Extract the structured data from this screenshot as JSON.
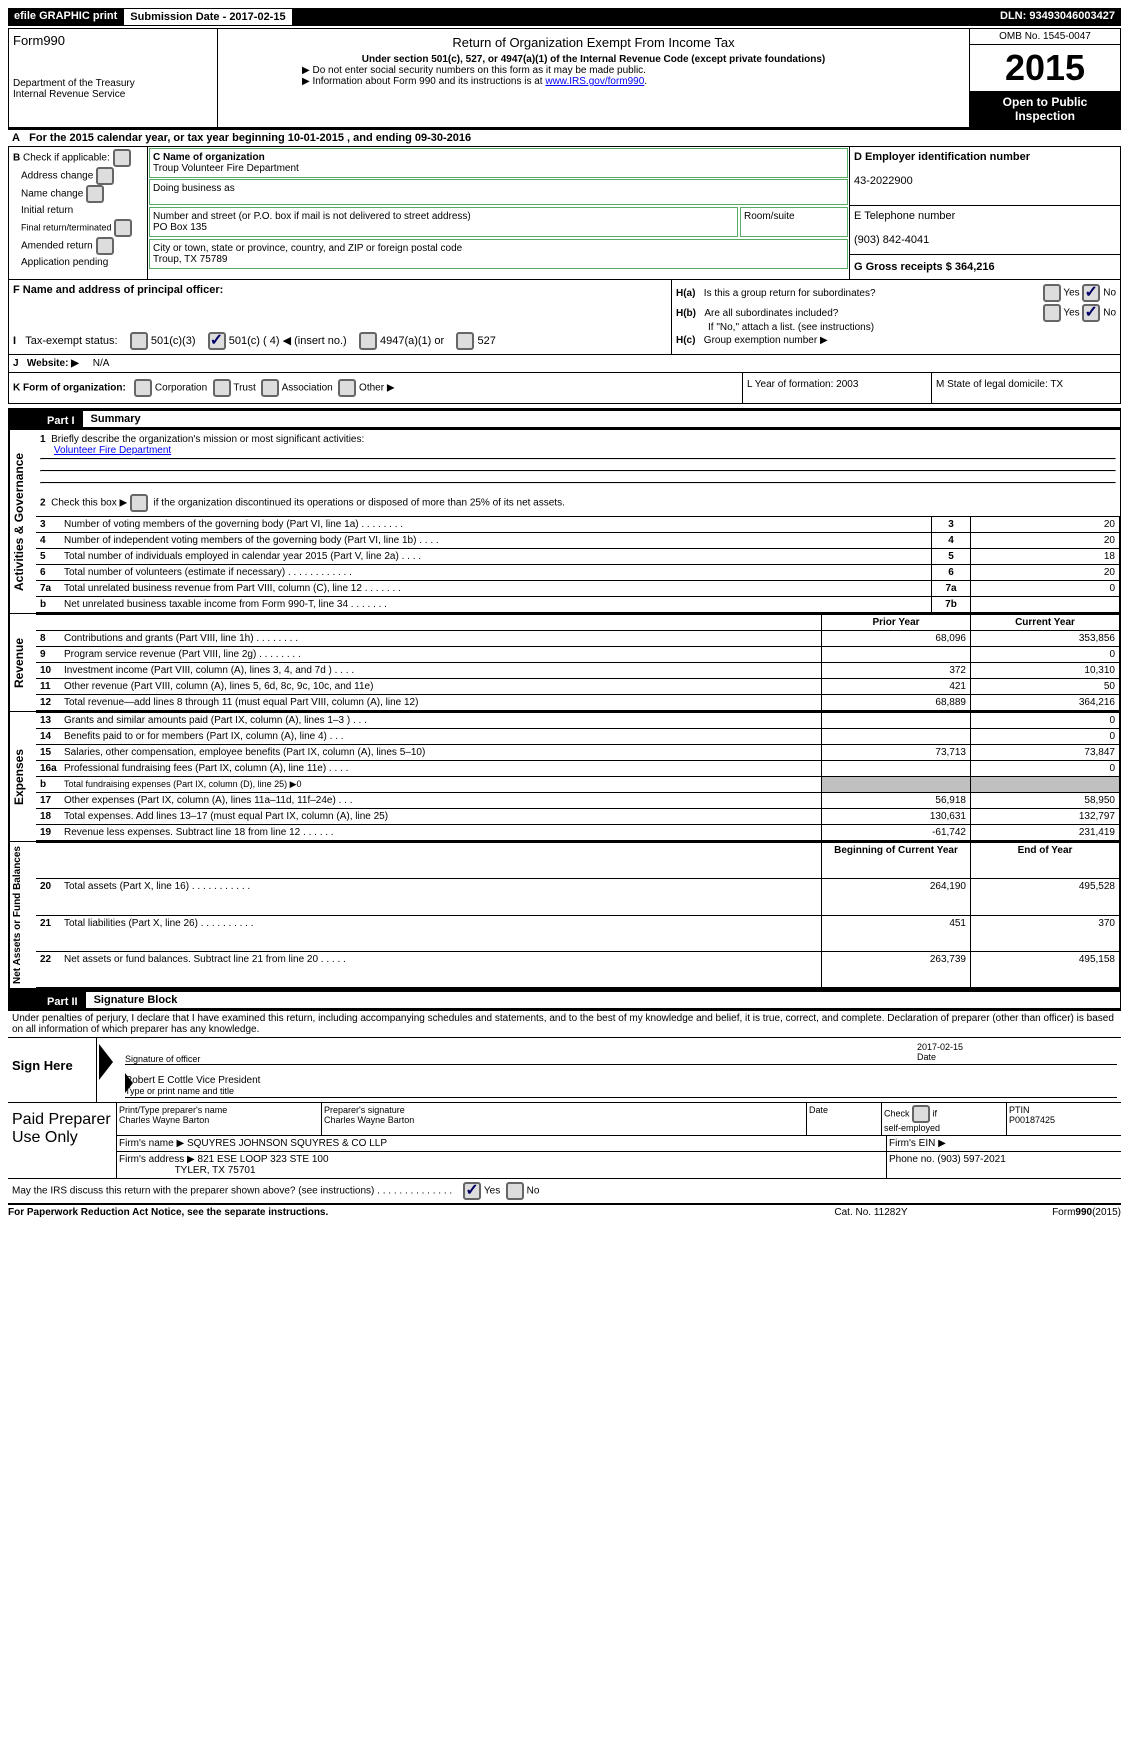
{
  "top": {
    "efile": "efile GRAPHIC print",
    "sub_label": "Submission Date - 2017-02-15",
    "dln": "DLN: 93493046003427"
  },
  "header": {
    "form": "Form990",
    "dept1": "Department of the Treasury",
    "dept2": "Internal Revenue Service",
    "title": "Return of Organization Exempt From Income Tax",
    "sub1": "Under section 501(c), 527, or 4947(a)(1) of the Internal Revenue Code (except private foundations)",
    "sub2": "▶ Do not enter social security numbers on this form as it may be made public.",
    "sub3": "▶ Information about Form 990 and its instructions is at ",
    "sub3_link": "www.IRS.gov/form990",
    "omb": "OMB No. 1545-0047",
    "year": "2015",
    "open": "Open to Public Inspection"
  },
  "a_line": "For the 2015 calendar year, or tax year beginning 10-01-2015      , and ending 09-30-2016",
  "b": {
    "label": "Check if applicable:",
    "items": [
      "Address change",
      "Name change",
      "Initial return",
      "Final return/terminated",
      "Amended return",
      "Application pending"
    ]
  },
  "c": {
    "name_label": "C Name of organization",
    "name": "Troup Volunteer Fire Department",
    "dba_label": "Doing business as",
    "addr_label": "Number and street (or P.O. box if mail is not delivered to street address)",
    "addr": "PO Box 135",
    "room_label": "Room/suite",
    "city_label": "City or town, state or province, country, and ZIP or foreign postal code",
    "city": "Troup, TX  75789"
  },
  "d": {
    "label": "D Employer identification number",
    "val": "43-2022900"
  },
  "e": {
    "label": "E Telephone number",
    "val": "(903) 842-4041"
  },
  "g": {
    "label": "G Gross receipts $ 364,216"
  },
  "f": {
    "label": "F Name and address of principal officer:"
  },
  "h": {
    "a": "Is this a group return for subordinates?",
    "b": "Are all subordinates included?",
    "b2": "If \"No,\" attach a list. (see instructions)",
    "c": "Group exemption number ▶"
  },
  "i": {
    "label": "Tax-exempt status:",
    "opts": [
      "501(c)(3)",
      "501(c) ( 4) ◀ (insert no.)",
      "4947(a)(1) or",
      "527"
    ]
  },
  "j": {
    "label": "Website: ▶",
    "val": "N/A"
  },
  "k": {
    "label": "K Form of organization:",
    "opts": [
      "Corporation",
      "Trust",
      "Association",
      "Other ▶"
    ]
  },
  "l": "L Year of formation: 2003",
  "m": "M State of legal domicile: TX",
  "part1": {
    "header": "Part I",
    "title": "Summary",
    "sections": {
      "activities": "Activities & Governance",
      "revenue": "Revenue",
      "expenses": "Expenses",
      "net": "Net Assets or Fund Balances"
    },
    "line1": "Briefly describe the organization's mission or most significant activities:",
    "line1_val": "Volunteer Fire Department",
    "line2": "Check this box ▶         if the organization discontinued its operations or disposed of more than 25% of its net assets.",
    "rows_gov": [
      {
        "n": "3",
        "text": "Number of voting members of the governing body (Part VI, line 1a)   .     .     .     .     .     .     .     .",
        "rn": "3",
        "val": "20"
      },
      {
        "n": "4",
        "text": "Number of independent voting members of the governing body (Part VI, line 1b)    .    .    .    .",
        "rn": "4",
        "val": "20"
      },
      {
        "n": "5",
        "text": "Total number of individuals employed in calendar year 2015 (Part V, line 2a)    .    .    .    .",
        "rn": "5",
        "val": "18"
      },
      {
        "n": "6",
        "text": "Total number of volunteers (estimate if necessary)    .    .    .    .    .    .    .    .    .    .    .    .",
        "rn": "6",
        "val": "20"
      },
      {
        "n": "7a",
        "text": "Total unrelated business revenue from Part VIII, column (C), line 12    .    .    .    .    .    .    .",
        "rn": "7a",
        "val": "0"
      },
      {
        "n": "b",
        "text": "Net unrelated business taxable income from Form 990-T, line 34    .    .    .    .    .    .    .",
        "rn": "7b",
        "val": ""
      }
    ],
    "col_prior": "Prior Year",
    "col_current": "Current Year",
    "rows_rev": [
      {
        "n": "8",
        "text": "Contributions and grants (Part VIII, line 1h)    .    .    .    .    .    .    .    .",
        "p": "68,096",
        "c": "353,856"
      },
      {
        "n": "9",
        "text": "Program service revenue (Part VIII, line 2g)    .    .    .    .    .    .    .    .",
        "p": "",
        "c": "0"
      },
      {
        "n": "10",
        "text": "Investment income (Part VIII, column (A), lines 3, 4, and 7d )    .    .    .    .",
        "p": "372",
        "c": "10,310"
      },
      {
        "n": "11",
        "text": "Other revenue (Part VIII, column (A), lines 5, 6d, 8c, 9c, 10c, and 11e)",
        "p": "421",
        "c": "50"
      },
      {
        "n": "12",
        "text": "Total revenue—add lines 8 through 11 (must equal Part VIII, column (A), line 12)",
        "p": "68,889",
        "c": "364,216"
      }
    ],
    "rows_exp": [
      {
        "n": "13",
        "text": "Grants and similar amounts paid (Part IX, column (A), lines 1–3 )    .    .    .",
        "p": "",
        "c": "0"
      },
      {
        "n": "14",
        "text": "Benefits paid to or for members (Part IX, column (A), line 4)    .    .    .",
        "p": "",
        "c": "0"
      },
      {
        "n": "15",
        "text": "Salaries, other compensation, employee benefits (Part IX, column (A), lines 5–10)",
        "p": "73,713",
        "c": "73,847"
      },
      {
        "n": "16a",
        "text": "Professional fundraising fees (Part IX, column (A), line 11e)    .    .    .    .",
        "p": "",
        "c": "0"
      },
      {
        "n": "b",
        "text": "Total fundraising expenses (Part IX, column (D), line 25) ▶0",
        "p": "GREY",
        "c": "GREY"
      },
      {
        "n": "17",
        "text": "Other expenses (Part IX, column (A), lines 11a–11d, 11f–24e)    .    .    .",
        "p": "56,918",
        "c": "58,950"
      },
      {
        "n": "18",
        "text": "Total expenses. Add lines 13–17 (must equal Part IX, column (A), line 25)",
        "p": "130,631",
        "c": "132,797"
      },
      {
        "n": "19",
        "text": "Revenue less expenses. Subtract line 18 from line 12    .    .    .    .    .    .",
        "p": "-61,742",
        "c": "231,419"
      }
    ],
    "col_begin": "Beginning of Current Year",
    "col_end": "End of Year",
    "rows_net": [
      {
        "n": "20",
        "text": "Total assets (Part X, line 16)    .    .    .    .    .    .    .    .    .    .    .",
        "p": "264,190",
        "c": "495,528"
      },
      {
        "n": "21",
        "text": "Total liabilities (Part X, line 26)    .    .    .    .    .    .    .    .    .    .",
        "p": "451",
        "c": "370"
      },
      {
        "n": "22",
        "text": "Net assets or fund balances. Subtract line 21 from line 20    .    .    .    .    .",
        "p": "263,739",
        "c": "495,158"
      }
    ]
  },
  "part2": {
    "header": "Part II",
    "title": "Signature Block",
    "decl": "Under penalties of perjury, I declare that I have examined this return, including accompanying schedules and statements, and to the best of my knowledge and belief, it is true, correct, and complete. Declaration of preparer (other than officer) is based on all information of which preparer has any knowledge.",
    "sign_here": "Sign Here",
    "sig_officer": "Signature of officer",
    "date": "Date",
    "date_val": "2017-02-15",
    "name_val": "Robert E Cottle  Vice President",
    "name_label": "Type or print name and title",
    "paid": "Paid Preparer Use Only",
    "prep_name_label": "Print/Type preparer's name",
    "prep_name": "Charles Wayne Barton",
    "prep_sig_label": "Preparer's signature",
    "prep_sig": "Charles Wayne Barton",
    "prep_date_label": "Date",
    "check_label": "Check         if self-employed",
    "ptin_label": "PTIN",
    "ptin": "P00187425",
    "firm_name_label": "Firm's name    ▶",
    "firm_name": "SQUYRES JOHNSON SQUYRES & CO LLP",
    "firm_ein_label": "Firm's EIN ▶",
    "firm_addr_label": "Firm's address ▶",
    "firm_addr": "821 ESE LOOP 323 STE 100",
    "firm_city": "TYLER, TX  75701",
    "phone_label": "Phone no. (903) 597-2021",
    "discuss": "May the IRS discuss this return with the preparer shown above? (see instructions)    .    .    .    .    .    .    .    .    .    .    .    .    .    .",
    "yes": "Yes",
    "no": "No"
  },
  "footer": {
    "left": "For Paperwork Reduction Act Notice, see the separate instructions.",
    "mid": "Cat. No. 11282Y",
    "right": "Form990(2015)"
  }
}
